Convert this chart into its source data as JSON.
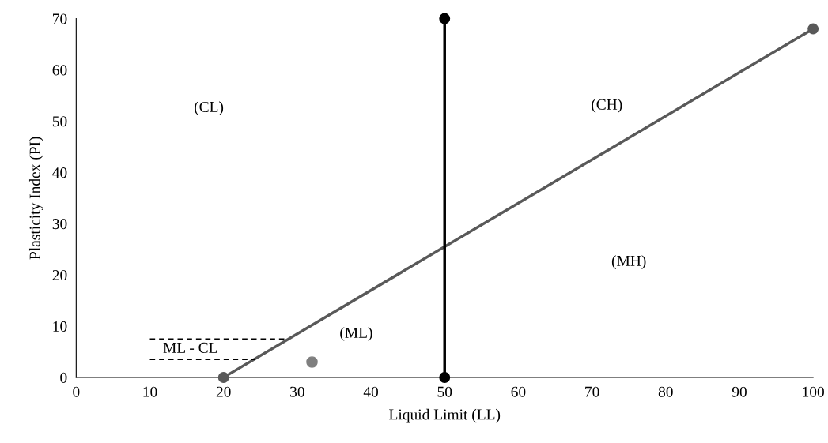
{
  "chart_data": {
    "type": "line",
    "xlabel": "Liquid Limit (LL)",
    "ylabel": "Plasticity Index (PI)",
    "xlim": [
      0,
      100
    ],
    "ylim": [
      0,
      70
    ],
    "xticks": [
      0,
      10,
      20,
      30,
      40,
      50,
      60,
      70,
      80,
      90,
      100
    ],
    "yticks": [
      0,
      10,
      20,
      30,
      40,
      50,
      60,
      70
    ],
    "grid": false,
    "legend": false,
    "series": [
      {
        "x": [
          20,
          100
        ],
        "values": [
          0,
          68
        ],
        "color": "#595959",
        "marker": "circle",
        "line_style": "solid"
      },
      {
        "x": [
          50,
          50
        ],
        "values": [
          0,
          70
        ],
        "color": "#000000",
        "marker": "circle",
        "line_style": "solid"
      },
      {
        "x": [
          10,
          28.8
        ],
        "values": [
          7.5,
          7.5
        ],
        "color": "#000000",
        "marker": "none",
        "line_style": "dashed"
      },
      {
        "x": [
          10,
          24.3
        ],
        "values": [
          3.5,
          3.5
        ],
        "color": "#000000",
        "marker": "none",
        "line_style": "dashed"
      },
      {
        "type": "scatter",
        "x": [
          32
        ],
        "values": [
          3
        ],
        "color": "#7f7f7f",
        "marker": "circle"
      }
    ],
    "annotations": [
      "(CL)",
      "(CH)",
      "(MH)",
      "(ML)",
      "ML - CL"
    ]
  }
}
